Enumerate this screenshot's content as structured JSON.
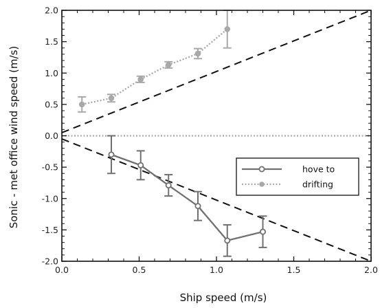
{
  "chart_data": {
    "type": "line",
    "title": "",
    "xlabel": "Ship speed (m/s)",
    "ylabel": "Sonic - met office wind speed (m/s)",
    "xlim": [
      0.0,
      2.0
    ],
    "ylim": [
      -2.0,
      2.0
    ],
    "x_ticks": [
      0.0,
      0.5,
      1.0,
      1.5,
      2.0
    ],
    "x_tick_labels": [
      "0.0",
      "0.5",
      "1.0",
      "1.5",
      "2.0"
    ],
    "y_ticks": [
      -2.0,
      -1.5,
      -1.0,
      -0.5,
      0.0,
      0.5,
      1.0,
      1.5,
      2.0
    ],
    "y_tick_labels": [
      "-2.0",
      "-1.5",
      "-1.0",
      "-0.5",
      "0.0",
      "0.5",
      "1.0",
      "1.5",
      "2.0"
    ],
    "grid": false,
    "legend_position": "lower-right",
    "series": [
      {
        "name": "hove to",
        "color": "#707070",
        "line_style": "solid",
        "marker": "open-circle",
        "x": [
          0.32,
          0.51,
          0.69,
          0.88,
          1.07,
          1.3
        ],
        "y": [
          -0.3,
          -0.47,
          -0.79,
          -1.12,
          -1.67,
          -1.53
        ],
        "error": [
          0.3,
          0.23,
          0.17,
          0.23,
          0.25,
          0.25
        ]
      },
      {
        "name": "drifting",
        "color": "#a8a8a8",
        "line_style": "dotted",
        "marker": "filled-circle",
        "x": [
          0.13,
          0.32,
          0.51,
          0.69,
          0.88,
          1.07
        ],
        "y": [
          0.5,
          0.6,
          0.9,
          1.13,
          1.31,
          1.7
        ],
        "error": [
          0.12,
          0.06,
          0.05,
          0.05,
          0.08,
          0.3
        ]
      }
    ],
    "reference_lines": [
      {
        "x": [
          0.0,
          2.0
        ],
        "y": [
          0.05,
          2.0
        ],
        "style": "dashed",
        "color": "#111111"
      },
      {
        "x": [
          0.0,
          2.0
        ],
        "y": [
          -0.05,
          -2.0
        ],
        "style": "dashed",
        "color": "#111111"
      },
      {
        "x": [
          0.0,
          2.0
        ],
        "y": [
          0.0,
          0.0
        ],
        "style": "dotted",
        "color": "#a8a8a8"
      }
    ]
  }
}
